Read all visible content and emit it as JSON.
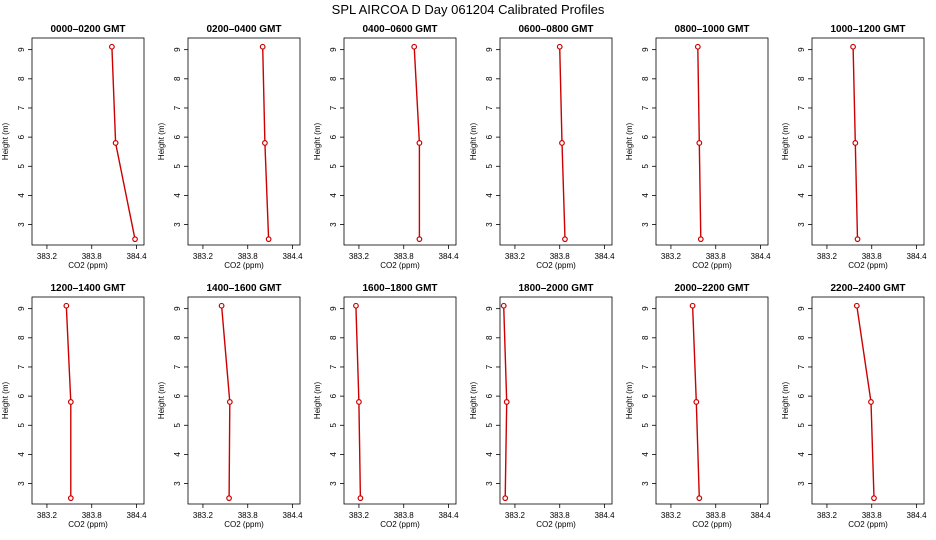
{
  "page_title": "SPL AIRCOA D  Day 061204  Calibrated Profiles",
  "chart_data": {
    "type": "line",
    "xlabel": "CO2 (ppm)",
    "ylabel": "Height (m)",
    "xlim": [
      383.0,
      384.5
    ],
    "ylim": [
      2.3,
      9.4
    ],
    "x_ticks": [
      "383.2",
      "383.8",
      "384.4"
    ],
    "x_tick_values": [
      383.2,
      383.8,
      384.4
    ],
    "y_ticks": [
      "3",
      "4",
      "5",
      "6",
      "7",
      "8",
      "9"
    ],
    "y_tick_values": [
      3,
      4,
      5,
      6,
      7,
      8,
      9
    ],
    "line_color": "#cc0000",
    "marker_color": "#cc0000",
    "panels": [
      {
        "title": "0000–0200 GMT",
        "x": [
          384.07,
          384.12,
          384.38
        ],
        "y": [
          9.1,
          5.8,
          2.5
        ]
      },
      {
        "title": "0200–0400 GMT",
        "x": [
          384.0,
          384.03,
          384.08
        ],
        "y": [
          9.1,
          5.8,
          2.5
        ]
      },
      {
        "title": "0400–0600 GMT",
        "x": [
          383.94,
          384.01,
          384.01
        ],
        "y": [
          9.1,
          5.8,
          2.5
        ]
      },
      {
        "title": "0600–0800 GMT",
        "x": [
          383.8,
          383.83,
          383.87
        ],
        "y": [
          9.1,
          5.8,
          2.5
        ]
      },
      {
        "title": "0800–1000 GMT",
        "x": [
          383.56,
          383.58,
          383.6
        ],
        "y": [
          9.1,
          5.8,
          2.5
        ]
      },
      {
        "title": "1000–1200 GMT",
        "x": [
          383.55,
          383.58,
          383.61
        ],
        "y": [
          9.1,
          5.8,
          2.5
        ]
      },
      {
        "title": "1200–1400 GMT",
        "x": [
          383.46,
          383.52,
          383.52
        ],
        "y": [
          9.1,
          5.8,
          2.5
        ]
      },
      {
        "title": "1400–1600 GMT",
        "x": [
          383.45,
          383.56,
          383.55
        ],
        "y": [
          9.1,
          5.8,
          2.5
        ]
      },
      {
        "title": "1600–1800 GMT",
        "x": [
          383.16,
          383.2,
          383.22
        ],
        "y": [
          9.1,
          5.8,
          2.5
        ]
      },
      {
        "title": "1800–2000 GMT",
        "x": [
          383.05,
          383.09,
          383.07
        ],
        "y": [
          9.1,
          5.8,
          2.5
        ]
      },
      {
        "title": "2000–2200 GMT",
        "x": [
          383.49,
          383.54,
          383.58
        ],
        "y": [
          9.1,
          5.8,
          2.5
        ]
      },
      {
        "title": "2200–2400 GMT",
        "x": [
          383.6,
          383.79,
          383.83
        ],
        "y": [
          9.1,
          5.8,
          2.5
        ]
      }
    ]
  }
}
